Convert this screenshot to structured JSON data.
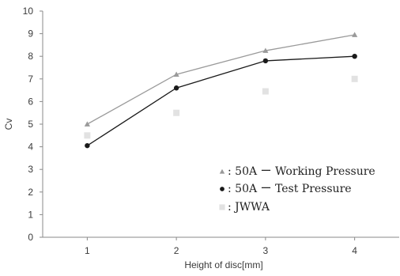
{
  "chart_data": {
    "type": "line",
    "title": "",
    "xlabel": "Height of disc[mm]",
    "ylabel": "Cv",
    "x": [
      1,
      2,
      3,
      4
    ],
    "xlim": [
      0.5,
      4.5
    ],
    "ylim": [
      0,
      10
    ],
    "y_ticks": [
      0,
      1,
      2,
      3,
      4,
      5,
      6,
      7,
      8,
      9,
      10
    ],
    "grid": false,
    "legend_position": "lower-right",
    "series": [
      {
        "name": ": 50A  ー  Working Pressure",
        "values": [
          5.0,
          7.2,
          8.25,
          8.95
        ],
        "marker": "triangle",
        "color": "#9a9a9a",
        "line": true
      },
      {
        "name": ": 50A  ー  Test Pressure",
        "values": [
          4.05,
          6.6,
          7.8,
          8.0
        ],
        "marker": "circle",
        "color": "#1a1a1a",
        "line": true
      },
      {
        "name": ": JWWA",
        "values": [
          4.5,
          5.5,
          6.45,
          7.0
        ],
        "marker": "square",
        "color": "#e2e2e2",
        "line": false
      }
    ]
  }
}
